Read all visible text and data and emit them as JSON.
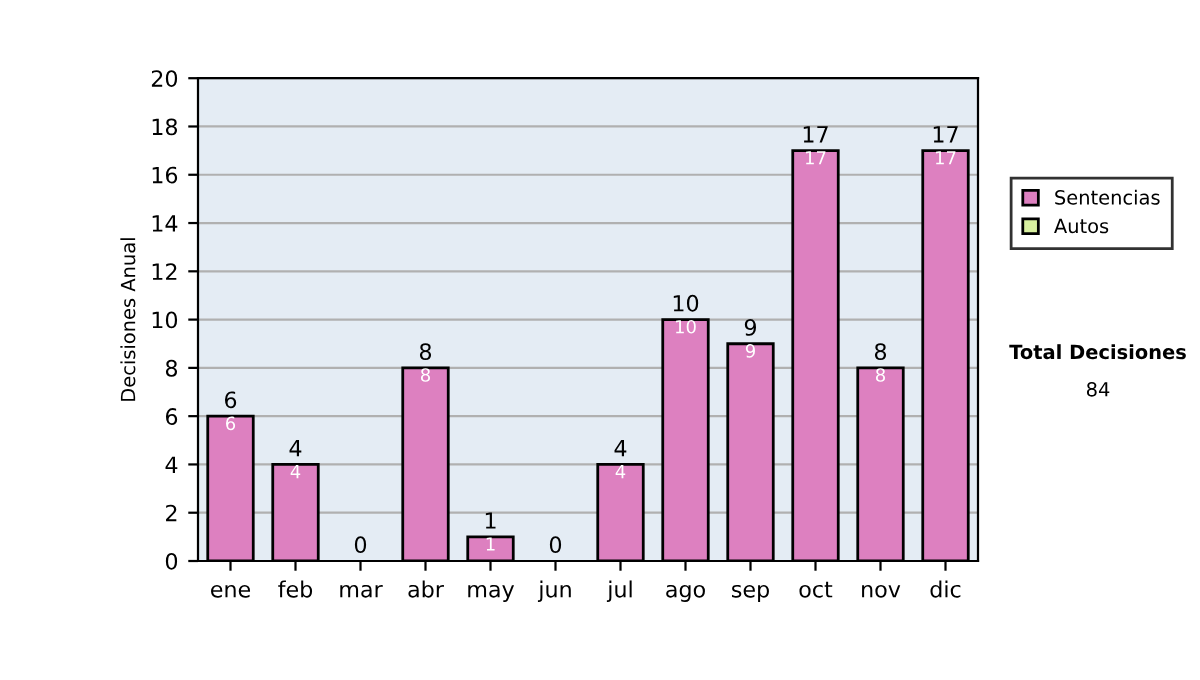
{
  "chart_data": {
    "type": "bar",
    "stacked": true,
    "ylabel": "Decisiones Anual",
    "categories": [
      "ene",
      "feb",
      "mar",
      "abr",
      "may",
      "jun",
      "jul",
      "ago",
      "sep",
      "oct",
      "nov",
      "dic"
    ],
    "series": [
      {
        "name": "Sentencias",
        "color": "#dd80c0",
        "values": [
          6,
          4,
          0,
          8,
          1,
          0,
          4,
          10,
          9,
          17,
          8,
          17
        ],
        "value_labels": [
          "6",
          "4",
          null,
          "8",
          "1",
          null,
          "4",
          "10",
          "9",
          "17",
          "8",
          "17"
        ]
      },
      {
        "name": "Autos",
        "color": "#d8f0a0",
        "values": [
          0,
          0,
          0,
          0,
          0,
          0,
          0,
          0,
          0,
          0,
          0,
          0
        ]
      }
    ],
    "totals": [
      "6",
      "4",
      "0",
      "8",
      "1",
      "0",
      "4",
      "10",
      "9",
      "17",
      "8",
      "17"
    ],
    "ylim": [
      0,
      20
    ],
    "yticks": [
      0,
      2,
      4,
      6,
      8,
      10,
      12,
      14,
      16,
      18,
      20
    ],
    "grid": "y",
    "legend": "right",
    "annotations": [
      "Total Decisiones",
      "84"
    ]
  }
}
